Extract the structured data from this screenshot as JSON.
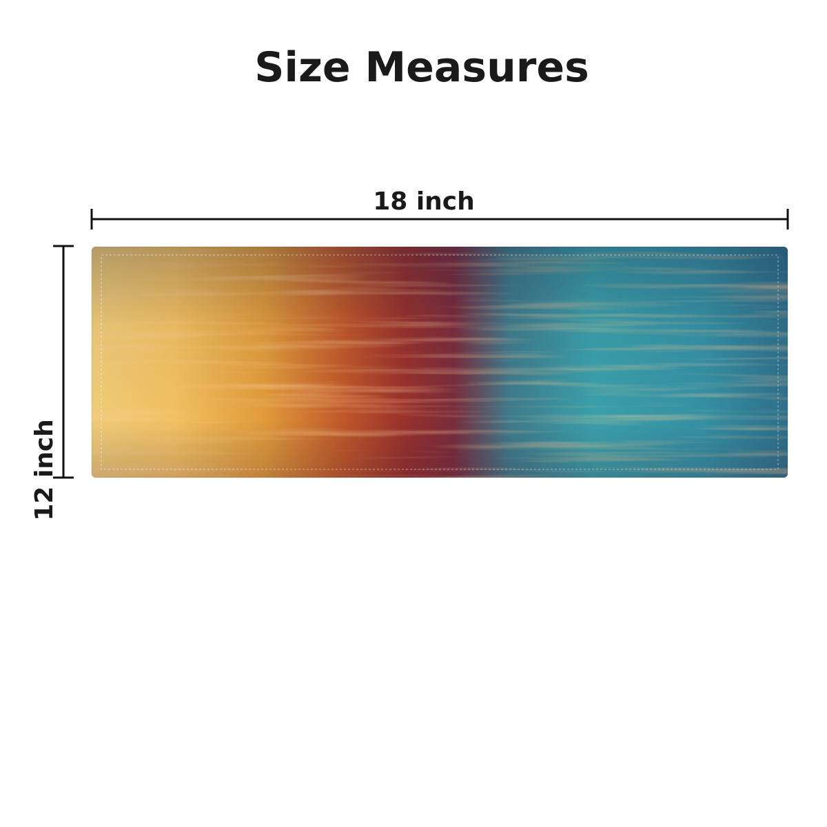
{
  "header": {
    "title": "Size Measures"
  },
  "dimensions": {
    "width_label": "18 inch",
    "height_label": "12 inch"
  }
}
